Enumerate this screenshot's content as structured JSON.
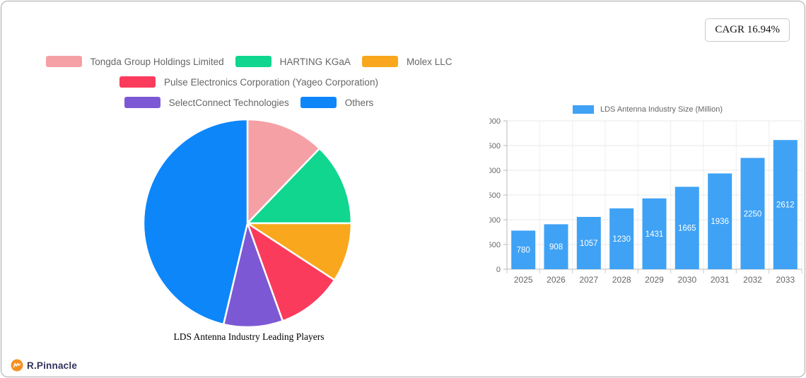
{
  "cagr_badge": {
    "label": "CAGR 16.94%"
  },
  "logo": {
    "text": "R.Pinnacle",
    "icon_color": "#f59122",
    "text_color": "#32325d"
  },
  "chart_data": [
    {
      "type": "pie",
      "title": "LDS Antenna Industry Leading Players",
      "labels": [
        "Tongda Group Holdings Limited",
        "HARTING KGaA",
        "Molex LLC",
        "Pulse Electronics Corporation (Yageo Corporation)",
        "SelectConnect Technologies",
        "Others"
      ],
      "values": [
        12.2,
        12.8,
        9.2,
        10.3,
        9.2,
        46.3
      ],
      "values_unit": "percent",
      "colors": [
        "#f5a0a5",
        "#10d68f",
        "#f9a71c",
        "#fb3b5c",
        "#7d58d5",
        "#0d86fa"
      ],
      "legend_rows": [
        [
          0,
          1,
          2
        ],
        [
          3
        ],
        [
          4,
          5
        ]
      ],
      "start_angle_deg": 0,
      "direction": "clockwise",
      "slice_border_color": "#ffffff"
    },
    {
      "type": "bar",
      "legend": "LDS Antenna Industry Size (Million)",
      "categories": [
        "2025",
        "2026",
        "2027",
        "2028",
        "2029",
        "2030",
        "2031",
        "2032",
        "2033"
      ],
      "values": [
        780,
        908,
        1057,
        1230,
        1431,
        1665,
        1936,
        2250,
        2612
      ],
      "bar_color": "#3fa2f5",
      "value_label_color": "#ffffff",
      "ylim": [
        0,
        3000
      ],
      "yticks": [
        0,
        500,
        1000,
        1500,
        2000,
        2500,
        3000
      ],
      "grid": true,
      "axis_color": "#b8b8b8",
      "grid_color": "#e9e9e9",
      "tick_label_color": "#666666",
      "legend_position": "top"
    }
  ]
}
